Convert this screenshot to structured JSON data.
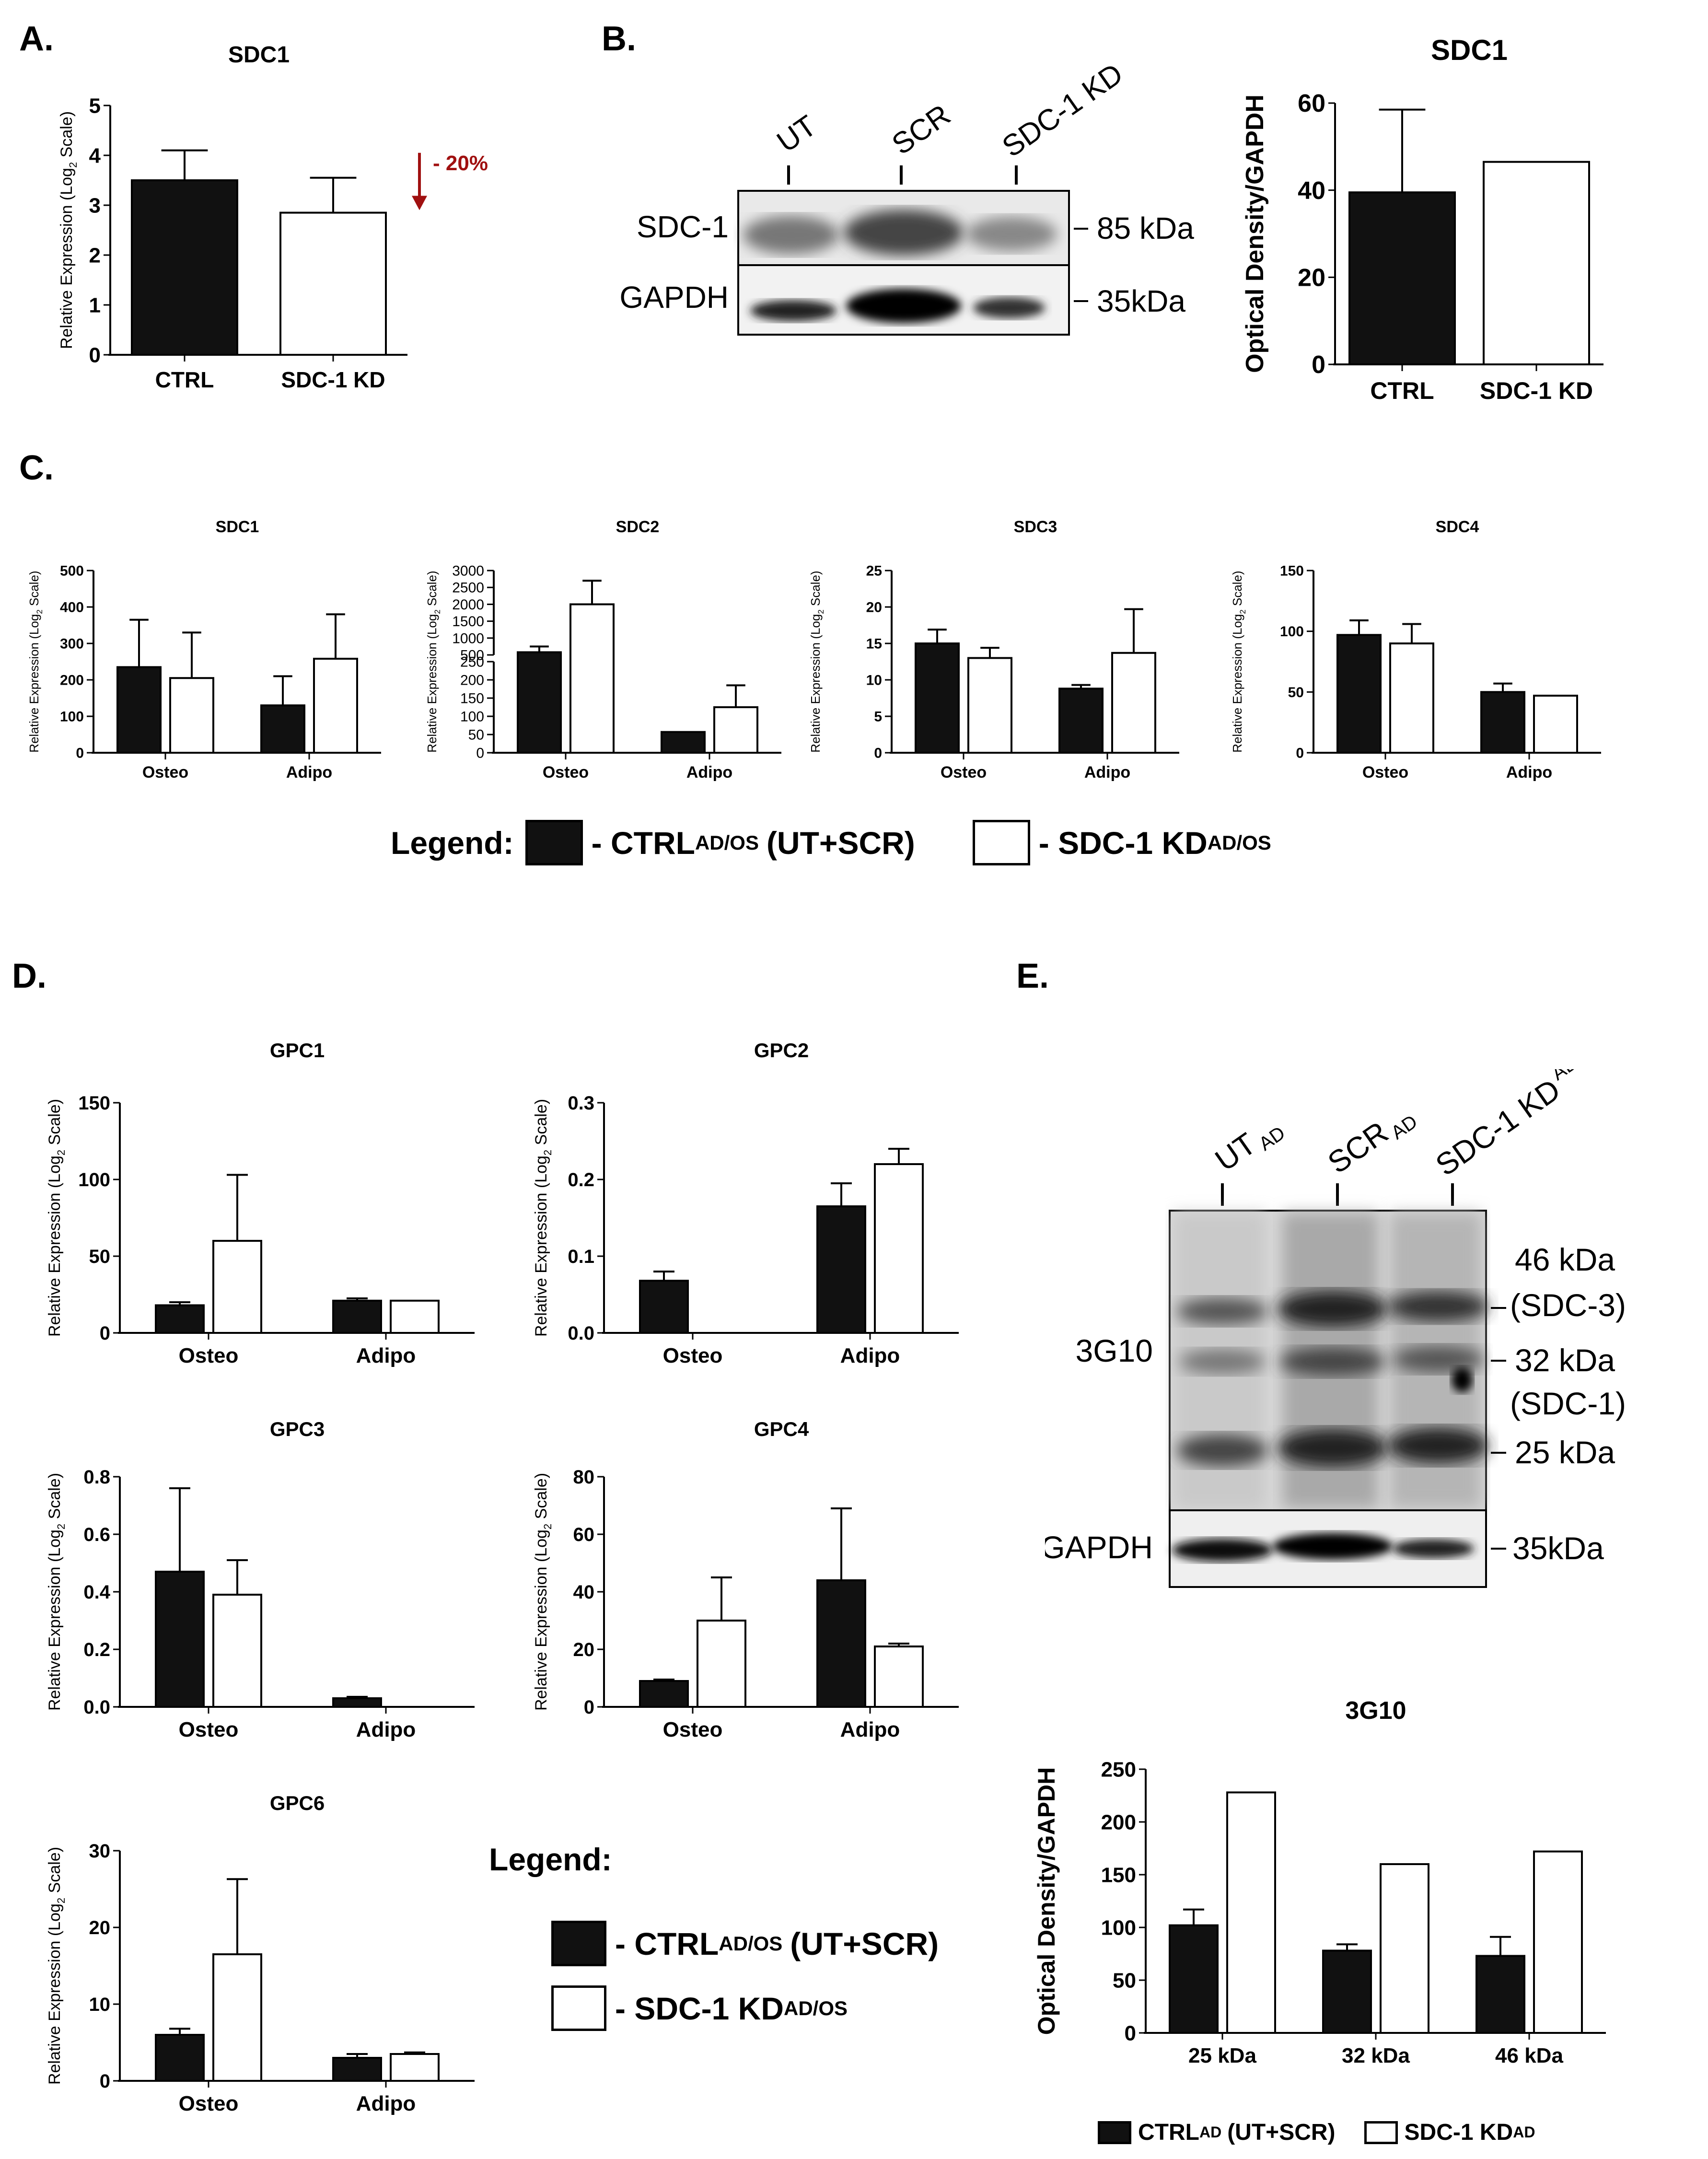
{
  "panels": {
    "a": "A.",
    "b": "B.",
    "c": "C.",
    "d": "D.",
    "e": "E."
  },
  "colors": {
    "ctrl": "#111111",
    "kd": "#ffffff",
    "stroke": "#000000",
    "annotation": "#a01010"
  },
  "legend_c": {
    "label": "Legend:",
    "ctrl_main": "- CTRL",
    "ctrl_sub": "AD/OS",
    "ctrl_tail": "(UT+SCR)",
    "kd_main": "- SDC-1 KD",
    "kd_sub": "AD/OS"
  },
  "legend_d": {
    "label": "Legend:",
    "ctrl_main": "- CTRL",
    "ctrl_sub": "AD/OS",
    "ctrl_tail": "(UT+SCR)",
    "kd_main": "- SDC-1 KD",
    "kd_sub": "AD/OS"
  },
  "legend_e": {
    "ctrl_main": "CTRL",
    "ctrl_sub": "AD",
    "ctrl_tail": "(UT+SCR)",
    "kd_main": "SDC-1 KD",
    "kd_sub": "AD"
  },
  "blot_b": {
    "lanes": [
      "UT",
      "SCR",
      "SDC-1 KD"
    ],
    "rows": [
      "SDC-1",
      "GAPDH"
    ],
    "markers": [
      "85 kDa",
      "35kDa"
    ]
  },
  "blot_e": {
    "lanes": [
      {
        "main": "UT",
        "sub": "AD"
      },
      {
        "main": "SCR",
        "sub": "AD"
      },
      {
        "main": "SDC-1 KD",
        "sub": "AD"
      }
    ],
    "rows": [
      "3G10",
      "GAPDH"
    ],
    "markers": [
      "46 kDa",
      "(SDC-3)",
      "32 kDa",
      "(SDC-1)",
      "25 kDa",
      "35kDa"
    ]
  },
  "chart_data": [
    {
      "id": "a",
      "type": "bar",
      "title": "SDC1",
      "ylabel": "Relative Expression (Log",
      "ylabel_sub": "2",
      "ylabel_tail": " Scale)",
      "categories": [
        "CTRL",
        "SDC-1 KD"
      ],
      "values": [
        3.5,
        2.85
      ],
      "errors": [
        0.6,
        0.7
      ],
      "fills": [
        "ctrl",
        "kd"
      ],
      "ylim": [
        0,
        5
      ],
      "ticks": [
        0,
        1,
        2,
        3,
        4,
        5
      ],
      "annotation": "- 20%"
    },
    {
      "id": "b",
      "type": "bar",
      "title": "SDC1",
      "ylabel": "Optical Density/GAPDH",
      "categories": [
        "CTRL",
        "SDC-1 KD"
      ],
      "values": [
        39.5,
        46.5
      ],
      "errors": [
        19,
        0
      ],
      "fills": [
        "ctrl",
        "kd"
      ],
      "ylim": [
        0,
        60
      ],
      "ticks": [
        0,
        20,
        40,
        60
      ]
    },
    {
      "id": "c1",
      "type": "bar",
      "title": "SDC1",
      "ylabel": "Relative Expression (Log",
      "ylabel_sub": "2",
      "ylabel_tail": " Scale)",
      "categories": [
        "Osteo",
        "Adipo"
      ],
      "series": [
        {
          "values": [
            235,
            130
          ],
          "errors": [
            130,
            80
          ]
        },
        {
          "values": [
            205,
            258
          ],
          "errors": [
            125,
            122
          ]
        }
      ],
      "ylim": [
        0,
        500
      ],
      "ticks": [
        0,
        100,
        200,
        300,
        400,
        500
      ]
    },
    {
      "id": "c2",
      "type": "bar",
      "title": "SDC2",
      "ylabel": "Relative Expression (Log",
      "ylabel_sub": "2",
      "ylabel_tail": " Scale)",
      "categories": [
        "Osteo",
        "Adipo"
      ],
      "series": [
        {
          "values": [
            580,
            57
          ],
          "errors": [
            170,
            0
          ]
        },
        {
          "values": [
            2000,
            125
          ],
          "errors": [
            700,
            60
          ]
        }
      ],
      "broken_axis": true,
      "break_at": 250,
      "upper_range": [
        500,
        3000
      ],
      "ticks_low": [
        0,
        50,
        100,
        150,
        200,
        250
      ],
      "ticks_high": [
        500,
        1000,
        1500,
        2000,
        2500,
        3000
      ]
    },
    {
      "id": "c3",
      "type": "bar",
      "title": "SDC3",
      "ylabel": "Relative Expression (Log",
      "ylabel_sub": "2",
      "ylabel_tail": " Scale)",
      "categories": [
        "Osteo",
        "Adipo"
      ],
      "series": [
        {
          "values": [
            15,
            8.8
          ],
          "errors": [
            1.9,
            0.5
          ]
        },
        {
          "values": [
            13,
            13.7
          ],
          "errors": [
            1.4,
            6
          ]
        }
      ],
      "ylim": [
        0,
        25
      ],
      "ticks": [
        0,
        5,
        10,
        15,
        20,
        25
      ]
    },
    {
      "id": "c4",
      "type": "bar",
      "title": "SDC4",
      "ylabel": "Relative Expression (Log",
      "ylabel_sub": "2",
      "ylabel_tail": " Scale)",
      "categories": [
        "Osteo",
        "Adipo"
      ],
      "series": [
        {
          "values": [
            97,
            50
          ],
          "errors": [
            12,
            7
          ]
        },
        {
          "values": [
            90,
            47
          ],
          "errors": [
            16,
            0
          ]
        }
      ],
      "ylim": [
        0,
        150
      ],
      "ticks": [
        0,
        50,
        100,
        150
      ]
    },
    {
      "id": "d1",
      "type": "bar",
      "title": "GPC1",
      "ylabel": "Relative Expression (Log",
      "ylabel_sub": "2",
      "ylabel_tail": " Scale)",
      "categories": [
        "Osteo",
        "Adipo"
      ],
      "series": [
        {
          "values": [
            18,
            21
          ],
          "errors": [
            2,
            1.5
          ]
        },
        {
          "values": [
            60,
            21
          ],
          "errors": [
            43,
            0
          ]
        }
      ],
      "ylim": [
        0,
        150
      ],
      "ticks": [
        0,
        50,
        100,
        150
      ]
    },
    {
      "id": "d2",
      "type": "bar",
      "title": "GPC2",
      "ylabel": "Relative Expression (Log",
      "ylabel_sub": "2",
      "ylabel_tail": " Scale)",
      "categories": [
        "Osteo",
        "Adipo"
      ],
      "series": [
        {
          "values": [
            0.068,
            0.165
          ],
          "errors": [
            0.012,
            0.03
          ]
        },
        {
          "values": [
            0,
            0.22
          ],
          "errors": [
            0,
            0.02
          ]
        }
      ],
      "ylim": [
        0,
        0.3
      ],
      "ticks": [
        0.0,
        0.1,
        0.2,
        0.3
      ],
      "decimals": 1
    },
    {
      "id": "d3",
      "type": "bar",
      "title": "GPC3",
      "ylabel": "Relative Expression (Log",
      "ylabel_sub": "2",
      "ylabel_tail": " Scale)",
      "categories": [
        "Osteo",
        "Adipo"
      ],
      "series": [
        {
          "values": [
            0.47,
            0.03
          ],
          "errors": [
            0.29,
            0.005
          ]
        },
        {
          "values": [
            0.39,
            0
          ],
          "errors": [
            0.12,
            0
          ]
        }
      ],
      "ylim": [
        0,
        0.8
      ],
      "ticks": [
        0.0,
        0.2,
        0.4,
        0.6,
        0.8
      ],
      "decimals": 1
    },
    {
      "id": "d4",
      "type": "bar",
      "title": "GPC4",
      "ylabel": "Relative Expression (Log",
      "ylabel_sub": "2",
      "ylabel_tail": " Scale)",
      "categories": [
        "Osteo",
        "Adipo"
      ],
      "series": [
        {
          "values": [
            9,
            44
          ],
          "errors": [
            0.5,
            25
          ]
        },
        {
          "values": [
            30,
            21
          ],
          "errors": [
            15,
            1
          ]
        }
      ],
      "ylim": [
        0,
        80
      ],
      "ticks": [
        0,
        20,
        40,
        60,
        80
      ]
    },
    {
      "id": "d5",
      "type": "bar",
      "title": "GPC6",
      "ylabel": "Relative Expression (Log",
      "ylabel_sub": "2",
      "ylabel_tail": " Scale)",
      "categories": [
        "Osteo",
        "Adipo"
      ],
      "series": [
        {
          "values": [
            6,
            3
          ],
          "errors": [
            0.8,
            0.5
          ]
        },
        {
          "values": [
            16.5,
            3.5
          ],
          "errors": [
            9.8,
            0.2
          ]
        }
      ],
      "ylim": [
        0,
        30
      ],
      "ticks": [
        0,
        10,
        20,
        30
      ]
    },
    {
      "id": "e",
      "type": "bar",
      "title": "3G10",
      "ylabel": "Optical Density/GAPDH",
      "categories": [
        "25 kDa",
        "32 kDa",
        "46 kDa"
      ],
      "series": [
        {
          "values": [
            102,
            78,
            73
          ],
          "errors": [
            15,
            6,
            18
          ]
        },
        {
          "values": [
            228,
            160,
            172
          ],
          "errors": [
            0,
            0,
            0
          ]
        }
      ],
      "ylim": [
        0,
        250
      ],
      "ticks": [
        0,
        50,
        100,
        150,
        200,
        250
      ]
    }
  ]
}
